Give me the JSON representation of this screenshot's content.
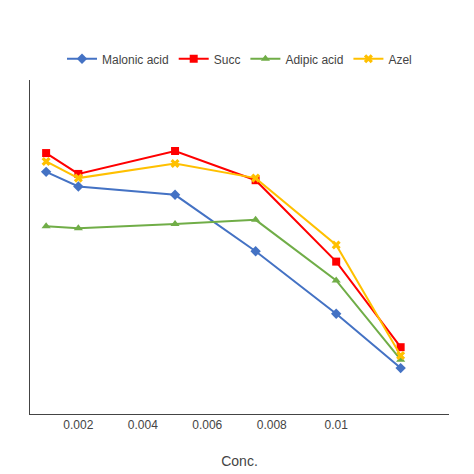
{
  "chart_data": {
    "type": "line",
    "x_label": "Conc.",
    "x": [
      0.001,
      0.002,
      0.005,
      0.0075,
      0.01,
      0.012
    ],
    "series": [
      {
        "name": "Malonic acid",
        "color": "#4472C4",
        "marker": "diamond",
        "values": [
          78.0,
          74.5,
          72.5,
          59.0,
          44.0,
          31.0
        ]
      },
      {
        "name": "Succ",
        "color": "#FF0000",
        "marker": "square",
        "values": [
          82.5,
          77.5,
          83.0,
          76.0,
          56.5,
          36.0
        ]
      },
      {
        "name": "Adipic acid",
        "color": "#70AD47",
        "marker": "triangle",
        "values": [
          65.0,
          64.5,
          65.5,
          66.5,
          52.0,
          33.0
        ]
      },
      {
        "name": "Azel",
        "color": "#FFC000",
        "marker": "x",
        "values": [
          80.5,
          76.5,
          80.0,
          76.5,
          60.5,
          34.0
        ]
      }
    ],
    "xlim": [
      0.0005,
      0.0135
    ],
    "xticks": [
      0.002,
      0.004,
      0.006,
      0.008,
      0.01
    ],
    "ylim": [
      20,
      100
    ],
    "tick_labels": "x",
    "grid": false,
    "legend": "top"
  }
}
